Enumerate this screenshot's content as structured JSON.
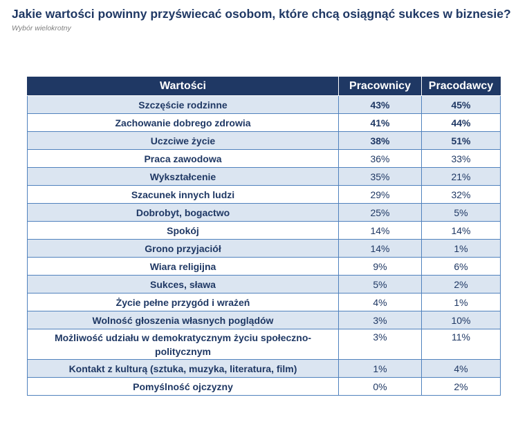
{
  "title": "Jakie wartości powinny przyświecać osobom, które chcą osiągnąć sukces w biznesie?",
  "subtitle": "Wybór wielokrotny",
  "colors": {
    "header_bg": "#1F3864",
    "row_alt_bg": "#DBE5F1",
    "border": "#4F81BD",
    "text": "#1F3864"
  },
  "chart_data": {
    "type": "table",
    "title": "Jakie wartości powinny przyświecać osobom, które chcą osiągnąć sukces w biznesie?",
    "subtitle": "Wybór wielokrotny",
    "columns": [
      "Wartości",
      "Pracownicy",
      "Pracodawcy"
    ],
    "rows": [
      {
        "label": "Szczęście rodzinne",
        "pracownicy": "43%",
        "pracodawcy": "45%",
        "bold": true
      },
      {
        "label": "Zachowanie dobrego zdrowia",
        "pracownicy": "41%",
        "pracodawcy": "44%",
        "bold": true
      },
      {
        "label": "Uczciwe życie",
        "pracownicy": "38%",
        "pracodawcy": "51%",
        "bold": true
      },
      {
        "label": "Praca zawodowa",
        "pracownicy": "36%",
        "pracodawcy": "33%",
        "bold": false
      },
      {
        "label": "Wykształcenie",
        "pracownicy": "35%",
        "pracodawcy": "21%",
        "bold": false
      },
      {
        "label": "Szacunek innych ludzi",
        "pracownicy": "29%",
        "pracodawcy": "32%",
        "bold": false
      },
      {
        "label": "Dobrobyt, bogactwo",
        "pracownicy": "25%",
        "pracodawcy": "5%",
        "bold": false
      },
      {
        "label": "Spokój",
        "pracownicy": "14%",
        "pracodawcy": "14%",
        "bold": false
      },
      {
        "label": "Grono przyjaciół",
        "pracownicy": "14%",
        "pracodawcy": "1%",
        "bold": false
      },
      {
        "label": "Wiara religijna",
        "pracownicy": "9%",
        "pracodawcy": "6%",
        "bold": false
      },
      {
        "label": "Sukces, sława",
        "pracownicy": "5%",
        "pracodawcy": "2%",
        "bold": false
      },
      {
        "label": "Życie pełne przygód i wrażeń",
        "pracownicy": "4%",
        "pracodawcy": "1%",
        "bold": false
      },
      {
        "label": "Wolność głoszenia własnych poglądów",
        "pracownicy": "3%",
        "pracodawcy": "10%",
        "bold": false
      },
      {
        "label": "Możliwość udziału w demokratycznym życiu społeczno-politycznym",
        "pracownicy": "3%",
        "pracodawcy": "11%",
        "bold": false
      },
      {
        "label": "Kontakt z kulturą (sztuka, muzyka, literatura, film)",
        "pracownicy": "1%",
        "pracodawcy": "4%",
        "bold": false
      },
      {
        "label": "Pomyślność ojczyzny",
        "pracownicy": "0%",
        "pracodawcy": "2%",
        "bold": false
      }
    ]
  }
}
